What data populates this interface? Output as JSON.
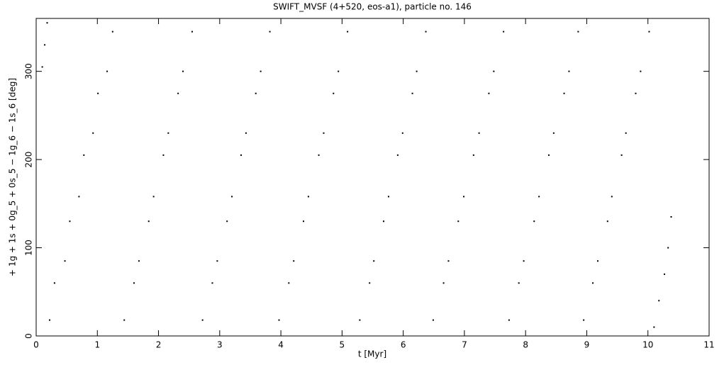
{
  "chart_data": {
    "type": "scatter",
    "title": "SWIFT_MVSF (4+520, eos-a1), particle no. 146",
    "x_label": "t [Myr]",
    "y_label": "+ 1g + 1s + 0g_5 + 0s_5 − 1g_6 − 1s_6 [deg]",
    "xlim": [
      0,
      11
    ],
    "ylim": [
      0,
      360
    ],
    "xticks": [
      0,
      1,
      2,
      3,
      4,
      5,
      6,
      7,
      8,
      9,
      10,
      11
    ],
    "yticks": [
      0,
      100,
      200,
      300
    ],
    "series": [
      {
        "color": "#000000",
        "x": [
          0.1,
          0.14,
          0.18,
          0.22,
          0.3,
          0.47,
          0.55,
          0.7,
          0.78,
          0.93,
          1.01,
          1.16,
          1.25,
          1.44,
          1.6,
          1.68,
          1.84,
          1.92,
          2.08,
          2.16,
          2.32,
          2.4,
          2.55,
          2.72,
          2.88,
          2.96,
          3.12,
          3.2,
          3.35,
          3.43,
          3.59,
          3.67,
          3.82,
          3.97,
          4.13,
          4.21,
          4.37,
          4.45,
          4.62,
          4.7,
          4.86,
          4.94,
          5.09,
          5.29,
          5.45,
          5.52,
          5.68,
          5.76,
          5.91,
          5.99,
          6.15,
          6.22,
          6.37,
          6.49,
          6.66,
          6.74,
          6.9,
          6.99,
          7.15,
          7.24,
          7.4,
          7.48,
          7.64,
          7.73,
          7.89,
          7.97,
          8.14,
          8.22,
          8.38,
          8.46,
          8.63,
          8.71,
          8.86,
          8.95,
          9.1,
          9.18,
          9.34,
          9.41,
          9.57,
          9.64,
          9.8,
          9.88,
          10.02,
          10.1,
          10.18,
          10.27,
          10.33,
          10.38
        ],
        "values": [
          305,
          330,
          355,
          18,
          60,
          85,
          130,
          158,
          205,
          230,
          275,
          300,
          345,
          18,
          60,
          85,
          130,
          158,
          205,
          230,
          275,
          300,
          345,
          18,
          60,
          85,
          130,
          158,
          205,
          230,
          275,
          300,
          345,
          18,
          60,
          85,
          130,
          158,
          205,
          230,
          275,
          300,
          345,
          18,
          60,
          85,
          130,
          158,
          205,
          230,
          275,
          300,
          345,
          18,
          60,
          85,
          130,
          158,
          205,
          230,
          275,
          300,
          345,
          18,
          60,
          85,
          130,
          158,
          205,
          230,
          275,
          300,
          345,
          18,
          60,
          85,
          130,
          158,
          205,
          230,
          275,
          300,
          345,
          10,
          40,
          70,
          100,
          135
        ]
      }
    ]
  }
}
